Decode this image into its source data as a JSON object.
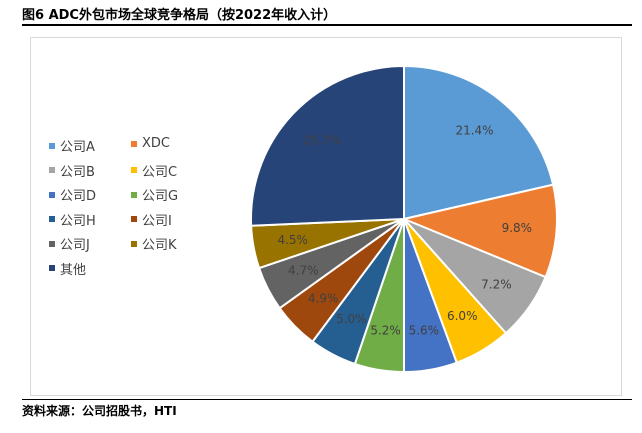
{
  "figure": {
    "title": "图6  ADC外包市场全球竞争格局（按2022年收入计）",
    "source": "资料来源：公司招股书，HTI"
  },
  "chart_data": {
    "type": "pie",
    "unit": "%",
    "legend_position": "left",
    "slices": [
      {
        "name": "公司A",
        "value": 21.4,
        "label": "21.4%",
        "color": "#5b9bd5",
        "label_color": "#404040"
      },
      {
        "name": "XDC",
        "value": 9.8,
        "label": "9.8%",
        "color": "#ed7d31",
        "label_color": "#404040"
      },
      {
        "name": "公司B",
        "value": 7.2,
        "label": "7.2%",
        "color": "#a5a5a5",
        "label_color": "#404040"
      },
      {
        "name": "公司C",
        "value": 6.0,
        "label": "6.0%",
        "color": "#ffc000",
        "label_color": "#404040"
      },
      {
        "name": "公司D",
        "value": 5.6,
        "label": "5.6%",
        "color": "#4472c4",
        "label_color": "#404040"
      },
      {
        "name": "公司G",
        "value": 5.2,
        "label": "5.2%",
        "color": "#70ad47",
        "label_color": "#404040"
      },
      {
        "name": "公司H",
        "value": 5.0,
        "label": "5.0%",
        "color": "#255e91",
        "label_color": "#404040"
      },
      {
        "name": "公司I",
        "value": 4.9,
        "label": "4.9%",
        "color": "#9e480e",
        "label_color": "#404040"
      },
      {
        "name": "公司J",
        "value": 4.7,
        "label": "4.7%",
        "color": "#636363",
        "label_color": "#404040"
      },
      {
        "name": "公司K",
        "value": 4.5,
        "label": "4.5%",
        "color": "#997300",
        "label_color": "#404040"
      },
      {
        "name": "其他",
        "value": 25.7,
        "label": "25.7%",
        "color": "#264478",
        "label_color": "#404040"
      }
    ]
  }
}
